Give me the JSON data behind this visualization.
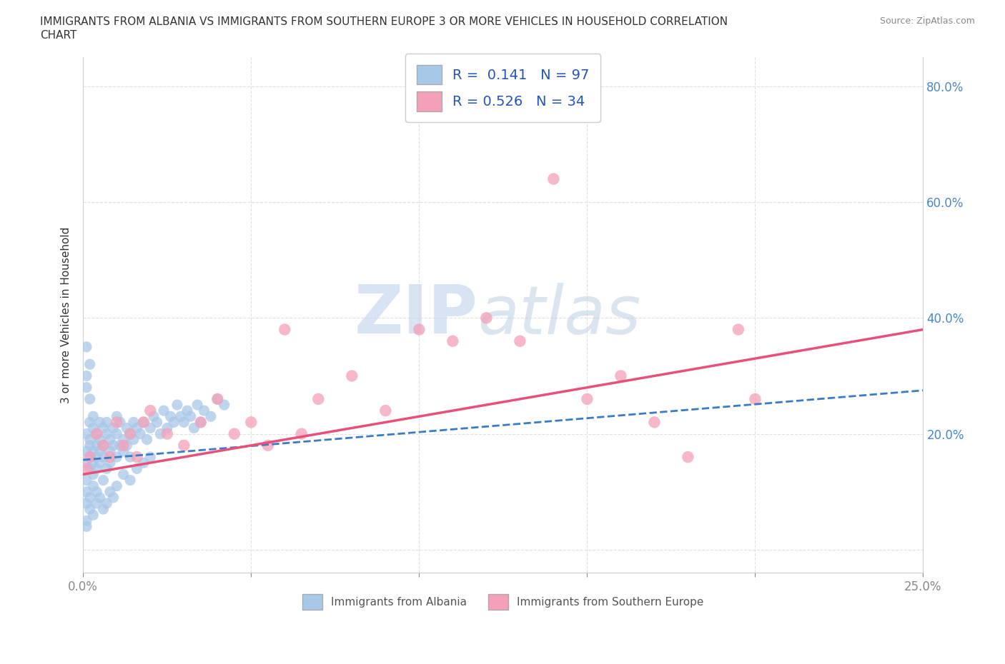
{
  "title_line1": "IMMIGRANTS FROM ALBANIA VS IMMIGRANTS FROM SOUTHERN EUROPE 3 OR MORE VEHICLES IN HOUSEHOLD CORRELATION",
  "title_line2": "CHART",
  "source": "Source: ZipAtlas.com",
  "ylabel": "3 or more Vehicles in Household",
  "xlim": [
    0.0,
    0.25
  ],
  "ylim": [
    -0.04,
    0.85
  ],
  "xticks": [
    0.0,
    0.05,
    0.1,
    0.15,
    0.2,
    0.25
  ],
  "xticklabels": [
    "0.0%",
    "",
    "",
    "",
    "",
    "25.0%"
  ],
  "yticks": [
    0.0,
    0.2,
    0.4,
    0.6,
    0.8
  ],
  "yticklabels": [
    "",
    "20.0%",
    "40.0%",
    "60.0%",
    "80.0%"
  ],
  "albania_color": "#a8c8e8",
  "southern_color": "#f4a0b8",
  "albania_trend_color": "#3a7bc8",
  "southern_trend_color": "#e8507a",
  "albania_R": 0.141,
  "albania_N": 97,
  "southern_R": 0.526,
  "southern_N": 34,
  "legend_label_albania": "Immigrants from Albania",
  "legend_label_southern": "Immigrants from Southern Europe",
  "watermark_zip": "ZIP",
  "watermark_atlas": "atlas",
  "background_color": "#ffffff",
  "grid_color": "#dddddd",
  "albania_scatter_x": [
    0.001,
    0.001,
    0.001,
    0.001,
    0.002,
    0.002,
    0.002,
    0.002,
    0.002,
    0.003,
    0.003,
    0.003,
    0.003,
    0.003,
    0.004,
    0.004,
    0.004,
    0.004,
    0.005,
    0.005,
    0.005,
    0.005,
    0.006,
    0.006,
    0.006,
    0.007,
    0.007,
    0.007,
    0.008,
    0.008,
    0.008,
    0.009,
    0.009,
    0.01,
    0.01,
    0.01,
    0.011,
    0.011,
    0.012,
    0.012,
    0.013,
    0.013,
    0.014,
    0.014,
    0.015,
    0.015,
    0.016,
    0.017,
    0.018,
    0.019,
    0.02,
    0.021,
    0.022,
    0.023,
    0.024,
    0.025,
    0.026,
    0.027,
    0.028,
    0.029,
    0.03,
    0.031,
    0.032,
    0.033,
    0.034,
    0.035,
    0.036,
    0.038,
    0.04,
    0.042,
    0.001,
    0.001,
    0.002,
    0.002,
    0.003,
    0.003,
    0.004,
    0.004,
    0.005,
    0.006,
    0.006,
    0.007,
    0.008,
    0.009,
    0.01,
    0.012,
    0.014,
    0.016,
    0.018,
    0.02,
    0.001,
    0.001,
    0.002,
    0.001,
    0.002,
    0.001,
    0.001
  ],
  "albania_scatter_y": [
    0.15,
    0.17,
    0.2,
    0.12,
    0.18,
    0.22,
    0.16,
    0.14,
    0.19,
    0.21,
    0.17,
    0.15,
    0.23,
    0.13,
    0.2,
    0.16,
    0.18,
    0.14,
    0.22,
    0.19,
    0.15,
    0.17,
    0.21,
    0.18,
    0.16,
    0.2,
    0.14,
    0.22,
    0.19,
    0.17,
    0.15,
    0.21,
    0.18,
    0.2,
    0.16,
    0.23,
    0.18,
    0.22,
    0.19,
    0.17,
    0.21,
    0.18,
    0.2,
    0.16,
    0.22,
    0.19,
    0.21,
    0.2,
    0.22,
    0.19,
    0.21,
    0.23,
    0.22,
    0.2,
    0.24,
    0.21,
    0.23,
    0.22,
    0.25,
    0.23,
    0.22,
    0.24,
    0.23,
    0.21,
    0.25,
    0.22,
    0.24,
    0.23,
    0.26,
    0.25,
    0.08,
    0.1,
    0.07,
    0.09,
    0.06,
    0.11,
    0.08,
    0.1,
    0.09,
    0.07,
    0.12,
    0.08,
    0.1,
    0.09,
    0.11,
    0.13,
    0.12,
    0.14,
    0.15,
    0.16,
    0.28,
    0.3,
    0.32,
    0.35,
    0.26,
    0.05,
    0.04
  ],
  "southern_scatter_x": [
    0.001,
    0.002,
    0.004,
    0.006,
    0.008,
    0.01,
    0.012,
    0.014,
    0.016,
    0.018,
    0.02,
    0.025,
    0.03,
    0.035,
    0.04,
    0.045,
    0.05,
    0.055,
    0.06,
    0.065,
    0.07,
    0.08,
    0.09,
    0.1,
    0.11,
    0.12,
    0.13,
    0.14,
    0.15,
    0.16,
    0.17,
    0.18,
    0.195,
    0.2
  ],
  "southern_scatter_y": [
    0.14,
    0.16,
    0.2,
    0.18,
    0.16,
    0.22,
    0.18,
    0.2,
    0.16,
    0.22,
    0.24,
    0.2,
    0.18,
    0.22,
    0.26,
    0.2,
    0.22,
    0.18,
    0.38,
    0.2,
    0.26,
    0.3,
    0.24,
    0.38,
    0.36,
    0.4,
    0.36,
    0.64,
    0.26,
    0.3,
    0.22,
    0.16,
    0.38,
    0.26
  ],
  "albania_trend_x": [
    0.0,
    0.25
  ],
  "albania_trend_y": [
    0.155,
    0.275
  ],
  "southern_trend_x": [
    0.0,
    0.25
  ],
  "southern_trend_y": [
    0.13,
    0.38
  ]
}
